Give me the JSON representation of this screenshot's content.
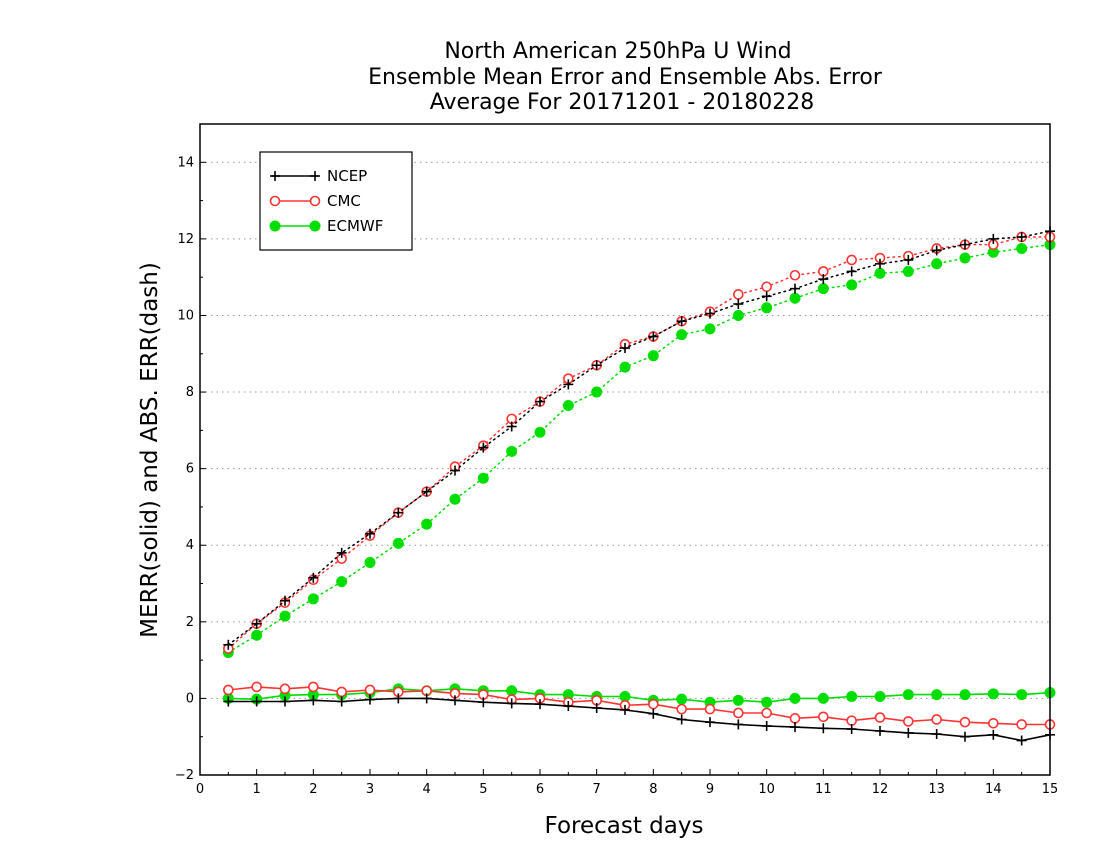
{
  "chart_data": {
    "type": "line",
    "title_lines": [
      "North American 250hPa U Wind",
      "Ensemble Mean Error and Ensemble Abs. Error",
      "Average For 20171201 - 20180228"
    ],
    "xlabel": "Forecast days",
    "ylabel": "MERR(solid) and ABS. ERR(dash)",
    "xlim": [
      0,
      15
    ],
    "ylim": [
      -2,
      15
    ],
    "xticks": [
      0,
      1,
      2,
      3,
      4,
      5,
      6,
      7,
      8,
      9,
      10,
      11,
      12,
      13,
      14,
      15
    ],
    "yticks": [
      -2,
      0,
      2,
      4,
      6,
      8,
      10,
      12,
      14
    ],
    "grid": "horizontal-dotted",
    "legend_position": "top-left",
    "x": [
      0.5,
      1,
      1.5,
      2,
      2.5,
      3,
      3.5,
      4,
      4.5,
      5,
      5.5,
      6,
      6.5,
      7,
      7.5,
      8,
      8.5,
      9,
      9.5,
      10,
      10.5,
      11,
      11.5,
      12,
      12.5,
      13,
      13.5,
      14,
      14.5,
      15
    ],
    "series": [
      {
        "name": "NCEP",
        "color": "#000000",
        "marker": "plus",
        "mean_error": [
          -0.08,
          -0.08,
          -0.08,
          -0.05,
          -0.08,
          -0.03,
          0.0,
          0.0,
          -0.05,
          -0.1,
          -0.13,
          -0.15,
          -0.2,
          -0.25,
          -0.3,
          -0.4,
          -0.55,
          -0.62,
          -0.68,
          -0.72,
          -0.75,
          -0.78,
          -0.8,
          -0.85,
          -0.9,
          -0.93,
          -1.0,
          -0.95,
          -1.1,
          -0.95
        ],
        "abs_error": [
          1.4,
          1.95,
          2.55,
          3.15,
          3.8,
          4.3,
          4.85,
          5.4,
          5.95,
          6.55,
          7.1,
          7.75,
          8.2,
          8.7,
          9.15,
          9.45,
          9.85,
          10.05,
          10.3,
          10.5,
          10.7,
          10.95,
          11.15,
          11.35,
          11.45,
          11.7,
          11.85,
          12.0,
          12.05,
          12.2
        ]
      },
      {
        "name": "CMC",
        "color": "#ff3333",
        "marker": "open-circle",
        "mean_error": [
          0.22,
          0.3,
          0.25,
          0.3,
          0.17,
          0.22,
          0.17,
          0.2,
          0.13,
          0.1,
          -0.03,
          0.0,
          -0.1,
          -0.05,
          -0.18,
          -0.15,
          -0.28,
          -0.28,
          -0.38,
          -0.38,
          -0.52,
          -0.48,
          -0.58,
          -0.5,
          -0.6,
          -0.55,
          -0.62,
          -0.65,
          -0.68,
          -0.68
        ],
        "abs_error": [
          1.3,
          1.95,
          2.5,
          3.1,
          3.65,
          4.25,
          4.85,
          5.4,
          6.05,
          6.6,
          7.3,
          7.75,
          8.35,
          8.7,
          9.25,
          9.45,
          9.85,
          10.1,
          10.55,
          10.75,
          11.05,
          11.15,
          11.45,
          11.5,
          11.55,
          11.75,
          11.85,
          11.85,
          12.05,
          12.05
        ]
      },
      {
        "name": "ECMWF",
        "color": "#00dd00",
        "marker": "filled-circle",
        "mean_error": [
          0.0,
          -0.02,
          0.08,
          0.1,
          0.1,
          0.15,
          0.25,
          0.2,
          0.25,
          0.2,
          0.2,
          0.1,
          0.1,
          0.05,
          0.05,
          -0.05,
          -0.02,
          -0.1,
          -0.05,
          -0.1,
          0.0,
          0.0,
          0.05,
          0.05,
          0.1,
          0.1,
          0.1,
          0.12,
          0.1,
          0.15
        ],
        "abs_error": [
          1.2,
          1.65,
          2.15,
          2.6,
          3.05,
          3.55,
          4.05,
          4.55,
          5.2,
          5.75,
          6.45,
          6.95,
          7.65,
          8.0,
          8.65,
          8.95,
          9.5,
          9.65,
          10.0,
          10.2,
          10.45,
          10.7,
          10.8,
          11.1,
          11.15,
          11.35,
          11.5,
          11.65,
          11.75,
          11.85
        ]
      }
    ]
  }
}
